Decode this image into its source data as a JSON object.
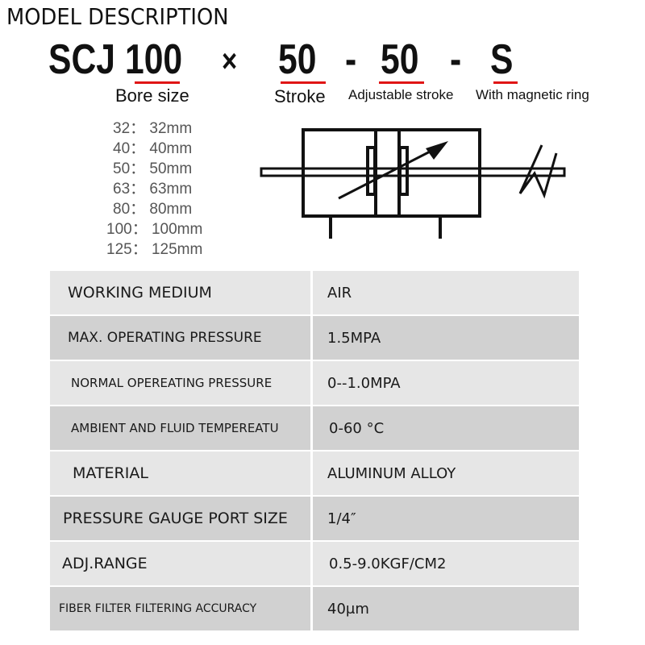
{
  "title": "MODEL DESCRIPTION",
  "model_code": {
    "series": "SCJ",
    "bore": "100",
    "times": "×",
    "stroke": "50",
    "dash1": "-",
    "adj_stroke": "50",
    "dash2": "-",
    "suffix": "S"
  },
  "captions": {
    "bore": "Bore size",
    "stroke": "Stroke",
    "adj_stroke": "Adjustable stroke",
    "suffix": "With magnetic ring"
  },
  "bore_sizes": [
    "32：  32mm",
    "40：  40mm",
    "50：  50mm",
    "63：  63mm",
    "80：  80mm",
    "100：  100mm",
    "125：  125mm"
  ],
  "accent_color": "#e01515",
  "specs": [
    {
      "label": "WORKING MEDIUM",
      "value": "AIR"
    },
    {
      "label": "MAX. OPERATING PRESSURE",
      "value": "1.5MPA"
    },
    {
      "label": "NORMAL OPEREATING PRESSURE",
      "value": "0--1.0MPA"
    },
    {
      "label": "AMBIENT AND FLUID TEMPEREATU",
      "value": "0-60 °C"
    },
    {
      "label": "MATERIAL",
      "value": "ALUMINUM ALLOY"
    },
    {
      "label": "PRESSURE GAUGE PORT SIZE",
      "value": "1/4″"
    },
    {
      "label": "ADJ.RANGE",
      "value": "0.5-9.0KGF/CM2"
    },
    {
      "label": "FIBER FILTER FILTERING ACCURACY",
      "value": "40μm"
    }
  ]
}
